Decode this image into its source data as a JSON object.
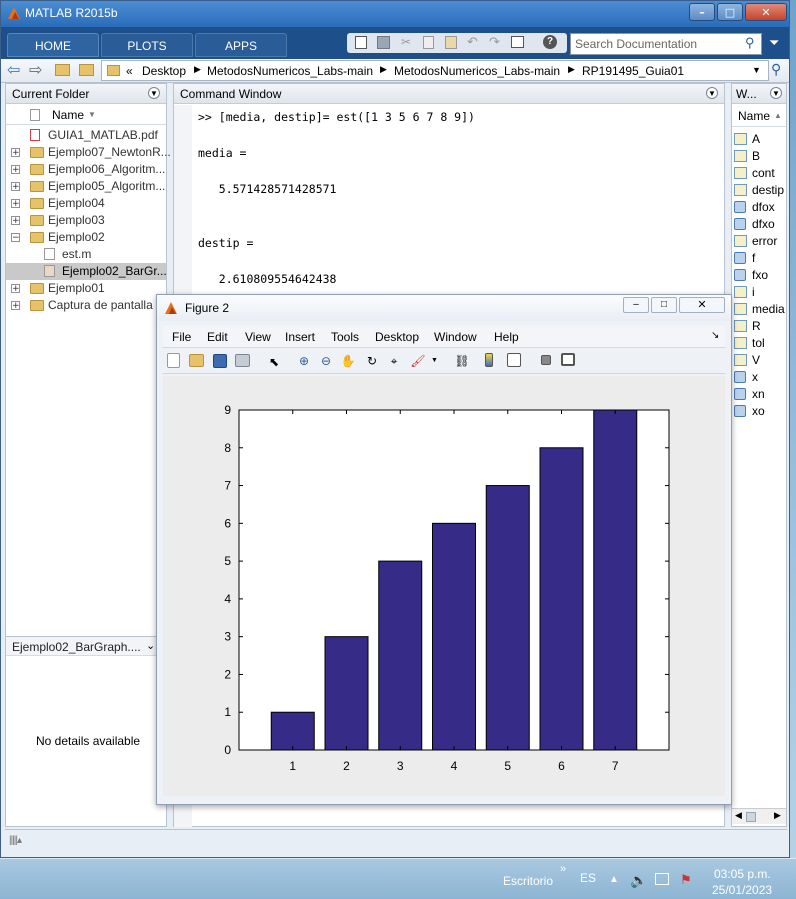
{
  "window": {
    "title": "MATLAB R2015b"
  },
  "ribbon": {
    "tabs": [
      "HOME",
      "PLOTS",
      "APPS"
    ],
    "search_placeholder": "Search Documentation"
  },
  "address": {
    "path": [
      "Desktop",
      "MetodosNumericos_Labs-main",
      "MetodosNumericos_Labs-main",
      "RP191495_Guia01"
    ],
    "overflow": "«"
  },
  "current_folder": {
    "title": "Current Folder",
    "column": "Name",
    "items": [
      {
        "label": "GUIA1_MATLAB.pdf",
        "type": "pdf",
        "expander": ""
      },
      {
        "label": "Ejemplo07_NewtonR...",
        "type": "folder",
        "expander": "+"
      },
      {
        "label": "Ejemplo06_Algoritm...",
        "type": "folder",
        "expander": "+"
      },
      {
        "label": "Ejemplo05_Algoritm...",
        "type": "folder",
        "expander": "+"
      },
      {
        "label": "Ejemplo04",
        "type": "folder",
        "expander": "+"
      },
      {
        "label": "Ejemplo03",
        "type": "folder",
        "expander": "+"
      },
      {
        "label": "Ejemplo02",
        "type": "folder",
        "expander": "−"
      },
      {
        "label": "est.m",
        "type": "mfile",
        "expander": ""
      },
      {
        "label": "Ejemplo02_BarGr...",
        "type": "fig",
        "expander": "",
        "selected": true
      },
      {
        "label": "Ejemplo01",
        "type": "folder",
        "expander": "+"
      },
      {
        "label": "Captura de pantalla",
        "type": "folder",
        "expander": "+"
      }
    ],
    "details_selector": "Ejemplo02_BarGraph....",
    "details_text": "No details available"
  },
  "command_window": {
    "title": "Command Window",
    "lines": [
      ">> [media, destip]= est([1 3 5 6 7 8 9])",
      "",
      "media =",
      "",
      "   5.571428571428571",
      "",
      "",
      "destip =",
      "",
      "   2.610809554642438"
    ]
  },
  "workspace": {
    "title": "W...",
    "column": "Name",
    "vars": [
      {
        "name": "A",
        "kind": "matrix"
      },
      {
        "name": "B",
        "kind": "matrix"
      },
      {
        "name": "cont",
        "kind": "matrix"
      },
      {
        "name": "destip",
        "kind": "matrix"
      },
      {
        "name": "dfox",
        "kind": "object"
      },
      {
        "name": "dfxo",
        "kind": "object"
      },
      {
        "name": "error",
        "kind": "matrix"
      },
      {
        "name": "f",
        "kind": "object"
      },
      {
        "name": "fxo",
        "kind": "object"
      },
      {
        "name": "i",
        "kind": "matrix"
      },
      {
        "name": "media",
        "kind": "matrix"
      },
      {
        "name": "R",
        "kind": "matrix"
      },
      {
        "name": "tol",
        "kind": "matrix"
      },
      {
        "name": "V",
        "kind": "matrix"
      },
      {
        "name": "x",
        "kind": "object"
      },
      {
        "name": "xn",
        "kind": "object"
      },
      {
        "name": "xo",
        "kind": "object"
      }
    ]
  },
  "figure": {
    "title": "Figure 2",
    "menu": [
      "File",
      "Edit",
      "View",
      "Insert",
      "Tools",
      "Desktop",
      "Window",
      "Help"
    ]
  },
  "chart_data": {
    "type": "bar",
    "categories": [
      "1",
      "2",
      "3",
      "4",
      "5",
      "6",
      "7"
    ],
    "values": [
      1,
      3,
      5,
      6,
      7,
      8,
      9
    ],
    "yticks": [
      0,
      1,
      2,
      3,
      4,
      5,
      6,
      7,
      8,
      9
    ],
    "ylim": [
      0,
      9
    ],
    "bar_color": "#362b87",
    "grid": false
  },
  "taskbar": {
    "label": "Escritorio",
    "lang": "ES",
    "time": "03:05 p.m.",
    "date": "25/01/2023"
  },
  "colors": {
    "title_blue": "#2a6cb8",
    "ribbon": "#1d4f8a",
    "selection": "#c9c9c9"
  }
}
